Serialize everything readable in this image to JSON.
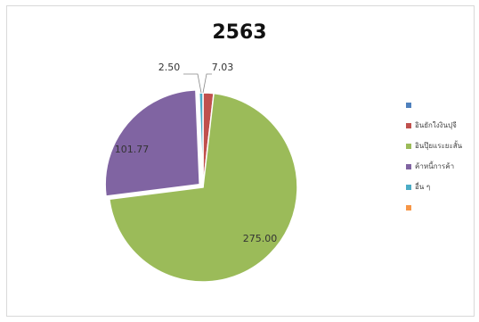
{
  "chart_data": {
    "type": "pie",
    "title": "2563",
    "slices": [
      {
        "label": "",
        "value": 0,
        "color": "#4f81bd"
      },
      {
        "label": "อินยักใงงินปุจี",
        "value": 7.03,
        "color": "#c0504d"
      },
      {
        "label": "อินปุ๊ยแระยะสั้น",
        "value": 275.0,
        "color": "#9bbb59"
      },
      {
        "label": "ค้าหนี้การค้า",
        "value": 101.77,
        "color": "#8064a2"
      },
      {
        "label": "อื่น ๆ",
        "value": 2.5,
        "color": "#4bacc6"
      },
      {
        "label": "",
        "value": 0,
        "color": "#f79646"
      }
    ],
    "data_labels": [
      "7.03",
      "275.00",
      "101.77",
      "2.50"
    ],
    "legend_position": "right"
  }
}
